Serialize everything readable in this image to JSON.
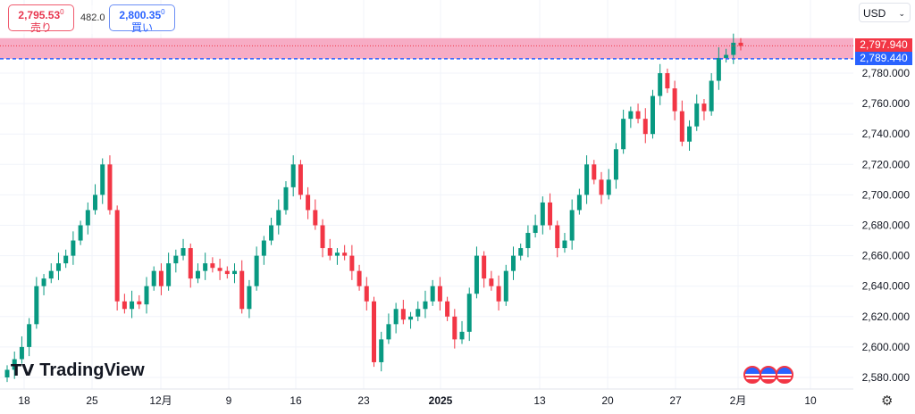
{
  "quote": {
    "sell_price": "2,795.53",
    "sell_sup": "0",
    "sell_label": "売り",
    "spread": "482.0",
    "buy_price": "2,800.35",
    "buy_sup": "0",
    "buy_label": "買い"
  },
  "currency": "USD",
  "price_tags": {
    "last": "2,797.940",
    "ask_line": "2,789.440"
  },
  "logo": "TradingView",
  "colors": {
    "up": "#089981",
    "down": "#f23645",
    "band": "#f7a8c2",
    "blue": "#2962ff"
  },
  "chart_data": {
    "type": "candlestick",
    "y_ticks": [
      "2,780.000",
      "2,760.000",
      "2,740.000",
      "2,720.000",
      "2,700.000",
      "2,680.000",
      "2,660.000",
      "2,640.000",
      "2,620.000",
      "2,600.000",
      "2,580.000"
    ],
    "y_tick_values": [
      2780,
      2760,
      2740,
      2720,
      2700,
      2680,
      2660,
      2640,
      2620,
      2600,
      2580
    ],
    "ylim": [
      2573,
      2810
    ],
    "x_ticks": [
      "18",
      "25",
      "12月",
      "9",
      "16",
      "23",
      "2025",
      "13",
      "20",
      "27",
      "2月",
      "10"
    ],
    "band": [
      2789.44,
      2803
    ],
    "last_price": 2797.94,
    "closes": [
      2585,
      2592,
      2600,
      2615,
      2640,
      2645,
      2650,
      2655,
      2660,
      2670,
      2680,
      2690,
      2700,
      2720,
      2690,
      2630,
      2625,
      2630,
      2628,
      2640,
      2650,
      2640,
      2655,
      2660,
      2665,
      2645,
      2650,
      2655,
      2652,
      2650,
      2648,
      2650,
      2625,
      2640,
      2660,
      2670,
      2680,
      2690,
      2705,
      2720,
      2700,
      2690,
      2680,
      2665,
      2660,
      2662,
      2660,
      2650,
      2640,
      2630,
      2590,
      2605,
      2615,
      2625,
      2618,
      2620,
      2625,
      2630,
      2640,
      2630,
      2620,
      2605,
      2610,
      2635,
      2660,
      2645,
      2640,
      2630,
      2650,
      2660,
      2665,
      2675,
      2680,
      2695,
      2680,
      2665,
      2670,
      2690,
      2700,
      2720,
      2710,
      2700,
      2710,
      2730,
      2750,
      2755,
      2750,
      2740,
      2765,
      2780,
      2770,
      2755,
      2735,
      2745,
      2760,
      2755,
      2775,
      2790,
      2792,
      2800,
      2797.94
    ]
  }
}
